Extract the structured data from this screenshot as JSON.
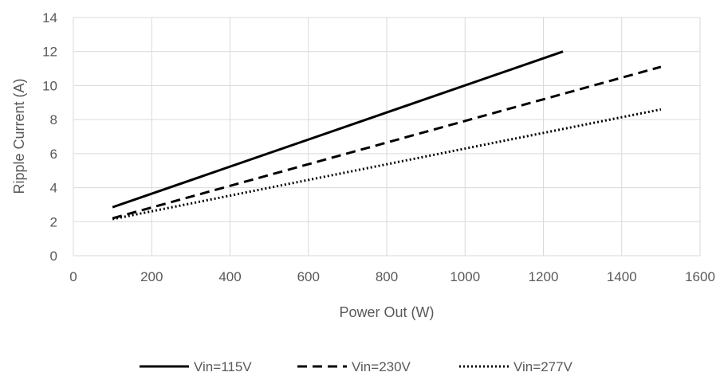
{
  "chart_data": {
    "type": "line",
    "title": "",
    "xlabel": "Power Out (W)",
    "ylabel": "Ripple Current (A)",
    "xlim": [
      0,
      1600
    ],
    "ylim": [
      0,
      14
    ],
    "xticks": [
      0,
      200,
      400,
      600,
      800,
      1000,
      1200,
      1400,
      1600
    ],
    "yticks": [
      0,
      2,
      4,
      6,
      8,
      10,
      12,
      14
    ],
    "grid": true,
    "legend_position": "bottom",
    "series": [
      {
        "name": "Vin=115V",
        "style": "solid",
        "color": "#000000",
        "x": [
          100,
          1250
        ],
        "y": [
          2.85,
          12.0
        ]
      },
      {
        "name": "Vin=230V",
        "style": "dashed",
        "color": "#000000",
        "x": [
          100,
          1500
        ],
        "y": [
          2.2,
          11.1
        ]
      },
      {
        "name": "Vin=277V",
        "style": "dotted",
        "color": "#000000",
        "x": [
          100,
          1500
        ],
        "y": [
          2.15,
          8.6
        ]
      }
    ]
  }
}
